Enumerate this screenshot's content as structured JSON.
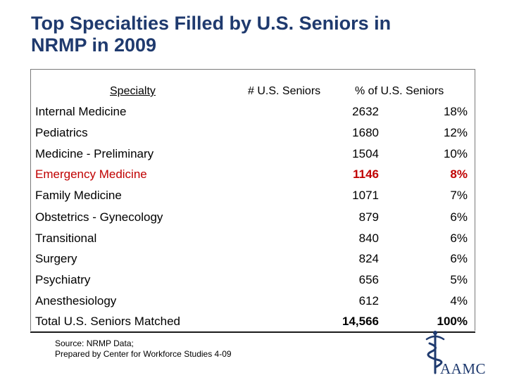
{
  "title": {
    "line1": "Top Specialties Filled by U.S. Seniors in",
    "line2": "NRMP in 2009"
  },
  "table": {
    "headers": {
      "specialty": "Specialty",
      "count": "# U.S. Seniors",
      "percent": "% of U.S. Seniors"
    },
    "rows": [
      {
        "name": "Internal Medicine",
        "count": "2632",
        "percent": "18%"
      },
      {
        "name": "Pediatrics",
        "count": "1680",
        "percent": "12%"
      },
      {
        "name": "Medicine - Preliminary",
        "count": "1504",
        "percent": "10%"
      },
      {
        "name": "Emergency Medicine",
        "count": "1146",
        "percent": "8%"
      },
      {
        "name": "Family Medicine",
        "count": "1071",
        "percent": "7%"
      },
      {
        "name": "Obstetrics - Gynecology",
        "count": "879",
        "percent": "6%"
      },
      {
        "name": "Transitional",
        "count": "840",
        "percent": "6%"
      },
      {
        "name": "Surgery",
        "count": "824",
        "percent": "6%"
      },
      {
        "name": "Psychiatry",
        "count": "656",
        "percent": "5%"
      },
      {
        "name": "Anesthesiology",
        "count": "612",
        "percent": "4%"
      }
    ],
    "total": {
      "name": "Total U.S. Seniors Matched",
      "count": "14,566",
      "percent": "100%"
    },
    "highlight_color": "#c00000"
  },
  "source": {
    "line1": "Source: NRMP Data;",
    "line2": "Prepared by Center for Workforce Studies 4-09"
  },
  "logo": {
    "text": "AAMC",
    "icon": "caduceus-icon",
    "color": "#1f3a6e"
  }
}
